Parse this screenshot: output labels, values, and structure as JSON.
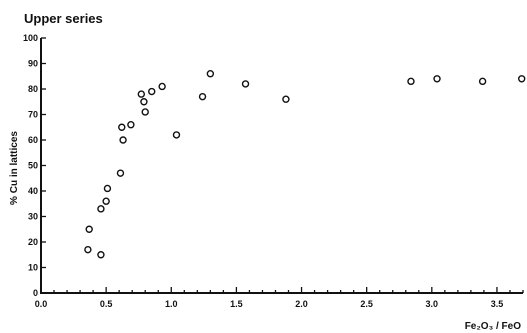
{
  "chart_data": {
    "type": "scatter",
    "title": "Upper series",
    "xlabel": "Fe₂O₃ / FeO",
    "ylabel": "% Cu in lattices",
    "xlim": [
      0.0,
      3.7
    ],
    "ylim": [
      0,
      100
    ],
    "x_ticks": [
      0.0,
      0.5,
      1.0,
      1.5,
      2.0,
      2.5,
      3.0,
      3.5
    ],
    "x_tick_labels": [
      "0.0",
      "0.5",
      "1.0",
      "1.5",
      "2.0",
      "2.5",
      "3.0",
      "3.5"
    ],
    "y_ticks": [
      0,
      10,
      20,
      30,
      40,
      50,
      60,
      70,
      80,
      90,
      100
    ],
    "y_tick_labels": [
      "0",
      "10",
      "20",
      "30",
      "40",
      "50",
      "60",
      "70",
      "80",
      "90",
      "100"
    ],
    "grid": false,
    "legend": "none",
    "marker": "open-circle",
    "series": [
      {
        "points": [
          {
            "x": 0.36,
            "y": 17
          },
          {
            "x": 0.37,
            "y": 25
          },
          {
            "x": 0.46,
            "y": 15
          },
          {
            "x": 0.46,
            "y": 33
          },
          {
            "x": 0.5,
            "y": 36
          },
          {
            "x": 0.51,
            "y": 41
          },
          {
            "x": 0.61,
            "y": 47
          },
          {
            "x": 0.62,
            "y": 65
          },
          {
            "x": 0.63,
            "y": 60
          },
          {
            "x": 0.69,
            "y": 66
          },
          {
            "x": 0.77,
            "y": 78
          },
          {
            "x": 0.79,
            "y": 75
          },
          {
            "x": 0.8,
            "y": 71
          },
          {
            "x": 0.85,
            "y": 79
          },
          {
            "x": 0.93,
            "y": 81
          },
          {
            "x": 1.04,
            "y": 62
          },
          {
            "x": 1.24,
            "y": 77
          },
          {
            "x": 1.3,
            "y": 86
          },
          {
            "x": 1.57,
            "y": 82
          },
          {
            "x": 1.88,
            "y": 76
          },
          {
            "x": 2.84,
            "y": 83
          },
          {
            "x": 3.04,
            "y": 84
          },
          {
            "x": 3.39,
            "y": 83
          },
          {
            "x": 3.69,
            "y": 84
          }
        ]
      }
    ]
  }
}
